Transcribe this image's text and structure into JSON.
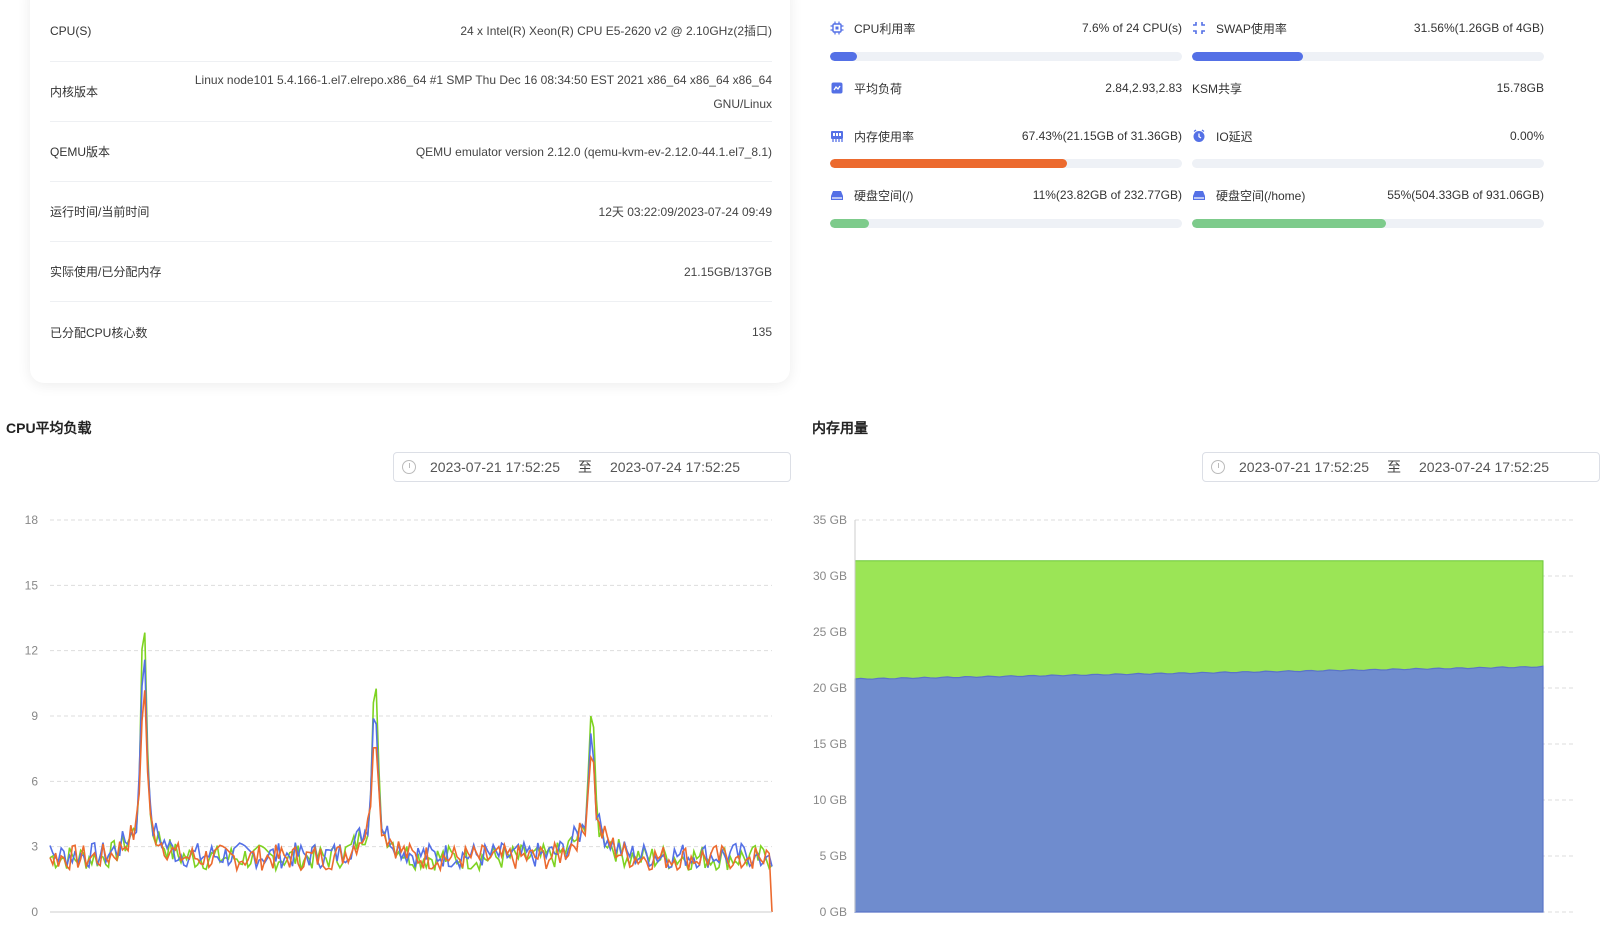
{
  "info": {
    "rows": [
      {
        "label": "CPU(S)",
        "value": "24 x Intel(R) Xeon(R) CPU E5-2620 v2 @ 2.10GHz(2插口)"
      },
      {
        "label": "内核版本",
        "value": "Linux node101 5.4.166-1.el7.elrepo.x86_64 #1 SMP Thu Dec 16 08:34:50 EST 2021 x86_64 x86_64 x86_64",
        "value2": "GNU/Linux"
      },
      {
        "label": "QEMU版本",
        "value": "QEMU emulator version 2.12.0 (qemu-kvm-ev-2.12.0-44.1.el7_8.1)"
      },
      {
        "label": "运行时间/当前时间",
        "value": "12天 03:22:09/2023-07-24 09:49"
      },
      {
        "label": "实际使用/已分配内存",
        "value": "21.15GB/137GB"
      },
      {
        "label": "已分配CPU核心数",
        "value": "135"
      }
    ]
  },
  "metrics": {
    "cpu": {
      "label": "CPU利用率",
      "value": "7.6% of 24 CPU(s)",
      "icon": "cpu-icon",
      "fraction": 0.076,
      "color": "#5470e6"
    },
    "swap": {
      "label": "SWAP使用率",
      "value": "31.56%(1.26GB of 4GB)",
      "icon": "swap-icon",
      "fraction": 0.3156,
      "color": "#5470e6"
    },
    "load": {
      "label": "平均负荷",
      "value": "2.84,2.93,2.83",
      "icon": "load-icon"
    },
    "ksm": {
      "label": "KSM共享",
      "value": "15.78GB"
    },
    "mem": {
      "label": "内存使用率",
      "value": "67.43%(21.15GB of 31.36GB)",
      "icon": "memory-icon",
      "fraction": 0.6743,
      "color": "#ec6a2e"
    },
    "io": {
      "label": "IO延迟",
      "value": "0.00%",
      "icon": "clock-icon"
    },
    "disk_root": {
      "label": "硬盘空间(/)",
      "value": "11%(23.82GB of 232.77GB)",
      "icon": "disk-icon",
      "fraction": 0.11,
      "color": "#7dcb8b"
    },
    "disk_home": {
      "label": "硬盘空间(/home)",
      "value": "55%(504.33GB of 931.06GB)",
      "icon": "disk-icon",
      "fraction": 0.55,
      "color": "#7dcb8b"
    }
  },
  "cpu_chart": {
    "title": "CPU平均负载",
    "range_start": "2023-07-21 17:52:25",
    "range_sep": "至",
    "range_end": "2023-07-24 17:52:25"
  },
  "mem_chart": {
    "title": "内存用量",
    "range_start": "2023-07-21 17:52:25",
    "range_sep": "至",
    "range_end": "2023-07-24 17:52:25"
  },
  "chart_data": [
    {
      "type": "line",
      "title": "CPU平均负载",
      "xlabel": "",
      "ylabel": "",
      "ylim": [
        0,
        18
      ],
      "yticks": [
        "0",
        "3",
        "6",
        "9",
        "12",
        "15",
        "18"
      ],
      "grid": true,
      "series": [
        {
          "color": "#7ed321",
          "peaks": [
            [
              0.13,
              12
            ],
            [
              0.45,
              9.1
            ],
            [
              0.75,
              7.8
            ]
          ],
          "baseline": 2.5
        },
        {
          "color": "#5470e6",
          "peaks": [
            [
              0.13,
              10.8
            ],
            [
              0.45,
              8.3
            ],
            [
              0.75,
              6.9
            ]
          ],
          "baseline": 2.6
        },
        {
          "color": "#ec6a2e",
          "peaks": [
            [
              0.13,
              9
            ],
            [
              0.45,
              7.2
            ],
            [
              0.75,
              6.2
            ]
          ],
          "baseline": 2.5
        }
      ]
    },
    {
      "type": "area",
      "title": "内存用量",
      "xlabel": "",
      "ylabel": "",
      "ylim": [
        0,
        35
      ],
      "yticks": [
        "0 GB",
        "5 GB",
        "10 GB",
        "15 GB",
        "20 GB",
        "25 GB",
        "30 GB",
        "35 GB"
      ],
      "grid": true,
      "series": [
        {
          "color": "#9be556",
          "value": 31.36
        },
        {
          "color": "#6f8cce",
          "start": 20.8,
          "end": 21.9
        }
      ]
    }
  ]
}
